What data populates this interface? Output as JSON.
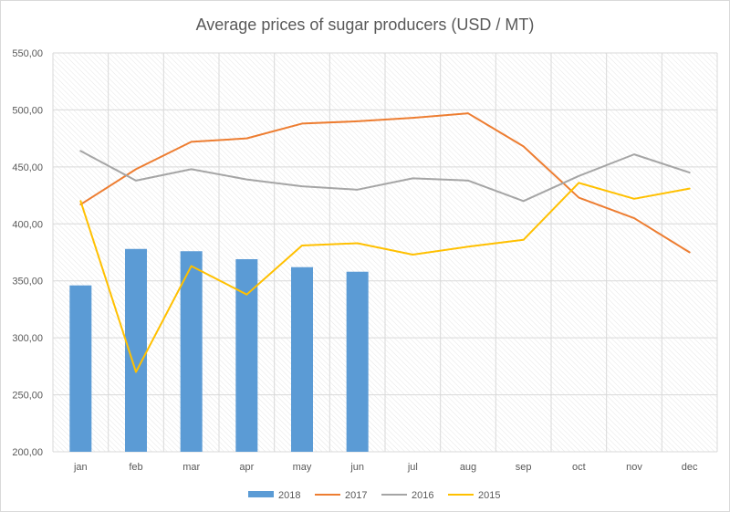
{
  "chart_data": {
    "type": "bar",
    "title": "Average prices of sugar producers (USD / MT)",
    "categories": [
      "jan",
      "feb",
      "mar",
      "apr",
      "may",
      "jun",
      "jul",
      "aug",
      "sep",
      "oct",
      "nov",
      "dec"
    ],
    "ylim": [
      200,
      550
    ],
    "yticks": [
      "200,00",
      "250,00",
      "300,00",
      "350,00",
      "400,00",
      "450,00",
      "500,00",
      "550,00"
    ],
    "grid": true,
    "legend_position": "bottom",
    "series": [
      {
        "name": "2018",
        "type": "bar",
        "color": "#5b9bd5",
        "values": [
          346,
          378,
          376,
          369,
          362,
          358,
          null,
          null,
          null,
          null,
          null,
          null
        ]
      },
      {
        "name": "2017",
        "type": "line",
        "color": "#ed7d31",
        "values": [
          417,
          448,
          472,
          475,
          488,
          490,
          493,
          497,
          468,
          423,
          405,
          375
        ]
      },
      {
        "name": "2016",
        "type": "line",
        "color": "#a5a5a5",
        "values": [
          464,
          438,
          448,
          439,
          433,
          430,
          440,
          438,
          420,
          442,
          461,
          445
        ]
      },
      {
        "name": "2015",
        "type": "line",
        "color": "#ffc000",
        "values": [
          420,
          270,
          363,
          338,
          381,
          383,
          373,
          380,
          386,
          436,
          422,
          431
        ]
      }
    ]
  }
}
